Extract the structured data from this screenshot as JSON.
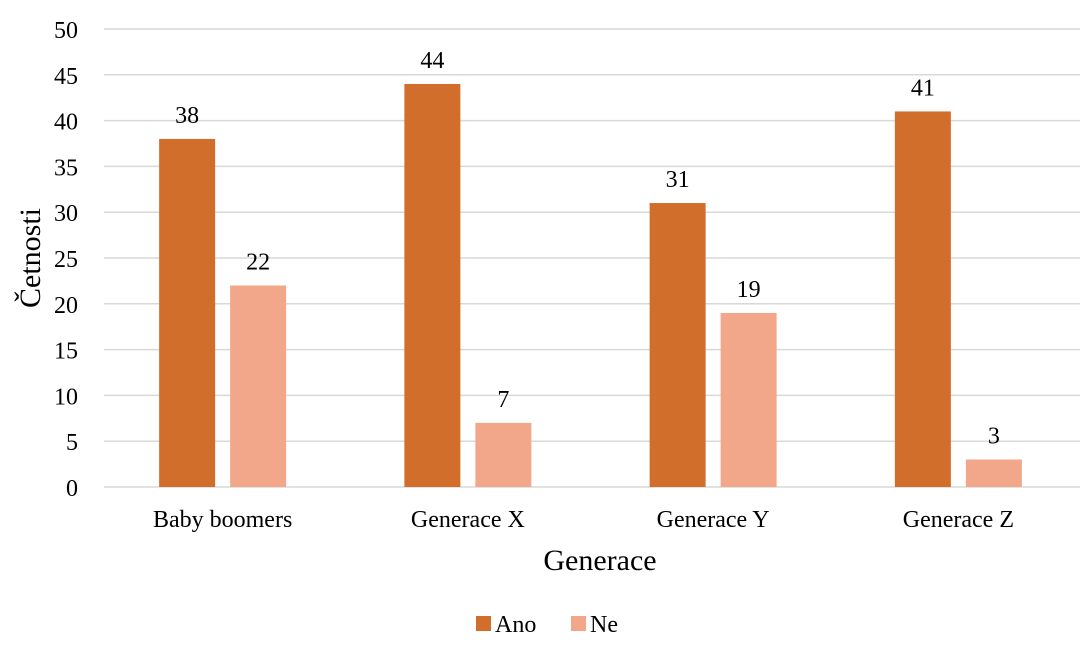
{
  "chart_data": {
    "type": "bar",
    "categories": [
      "Baby boomers",
      "Generace X",
      "Generace Y",
      "Generace Z"
    ],
    "series": [
      {
        "name": "Ano",
        "values": [
          38,
          44,
          31,
          41
        ],
        "color": "#D26E2B"
      },
      {
        "name": "Ne",
        "values": [
          22,
          7,
          19,
          3
        ],
        "color": "#F2A78A"
      }
    ],
    "xlabel": "Generace",
    "ylabel": "Četnosti",
    "ylim": [
      0,
      50
    ],
    "yticks": [
      0,
      5,
      10,
      15,
      20,
      25,
      30,
      35,
      40,
      45,
      50
    ],
    "grid": true,
    "grid_color": "#D9D9D9",
    "data_labels": true,
    "legend_position": "bottom"
  }
}
